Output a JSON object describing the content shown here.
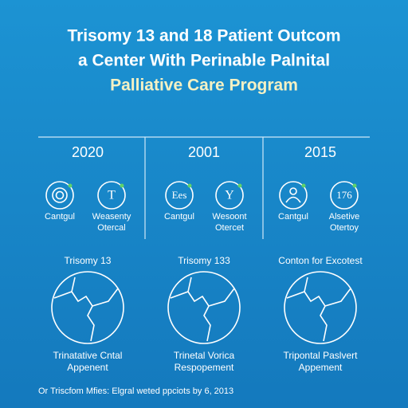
{
  "title": {
    "lines": [
      "Trisomy 13 and 18 Patient Outcom",
      "a Center With Perinable Palnital",
      "Palliative Care Program"
    ]
  },
  "columns": [
    {
      "year": "2020",
      "icons": [
        {
          "symbol": null,
          "label": [
            "Cantgul"
          ]
        },
        {
          "symbol": "T",
          "label": [
            "Weasenty",
            "Otercal"
          ]
        }
      ]
    },
    {
      "year": "2001",
      "icons": [
        {
          "symbol": "Ees",
          "label": [
            "Cantgul"
          ]
        },
        {
          "symbol": "Y",
          "label": [
            "Wesoont",
            "Otercet"
          ]
        }
      ]
    },
    {
      "year": "2015",
      "icons": [
        {
          "symbol": null,
          "label": [
            "Cantgul"
          ]
        },
        {
          "symbol": "176",
          "label": [
            "Alsetive",
            "Otertoy"
          ]
        }
      ]
    }
  ],
  "sections": [
    {
      "heading": "Trisomy 13",
      "caption": [
        "Trinatative Cntal",
        "Appenent"
      ]
    },
    {
      "heading": "Trisomy 133",
      "caption": [
        "Trinetal Vorica",
        "Respopement"
      ]
    },
    {
      "heading": "Conton for Excotest",
      "caption": [
        "Tripontal Paslvert",
        "Appement"
      ]
    }
  ],
  "footer": "Or Triscfom Mfies: Elgral weted ppciots by 6, 2013"
}
